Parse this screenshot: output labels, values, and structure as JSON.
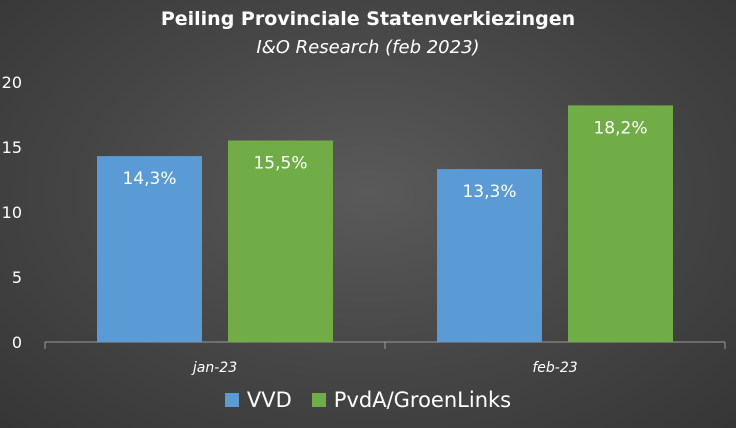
{
  "chart_data": {
    "type": "bar",
    "title": "Peiling Provinciale Statenverkiezingen",
    "subtitle": "I&O Research (feb 2023)",
    "categories": [
      "jan-23",
      "feb-23"
    ],
    "series": [
      {
        "name": "VVD",
        "values": [
          14.3,
          13.3
        ],
        "labels": [
          "14,3%",
          "13,3%"
        ],
        "color": "#5b9bd5"
      },
      {
        "name": "PvdA/GroenLinks",
        "values": [
          15.5,
          18.2
        ],
        "labels": [
          "15,5%",
          "18,2%"
        ],
        "color": "#70ad47"
      }
    ],
    "ylim": [
      0,
      20
    ],
    "yticks": [
      0,
      5,
      10,
      15,
      20
    ],
    "xlabel": "",
    "ylabel": "",
    "grid": false,
    "legend_position": "bottom"
  }
}
